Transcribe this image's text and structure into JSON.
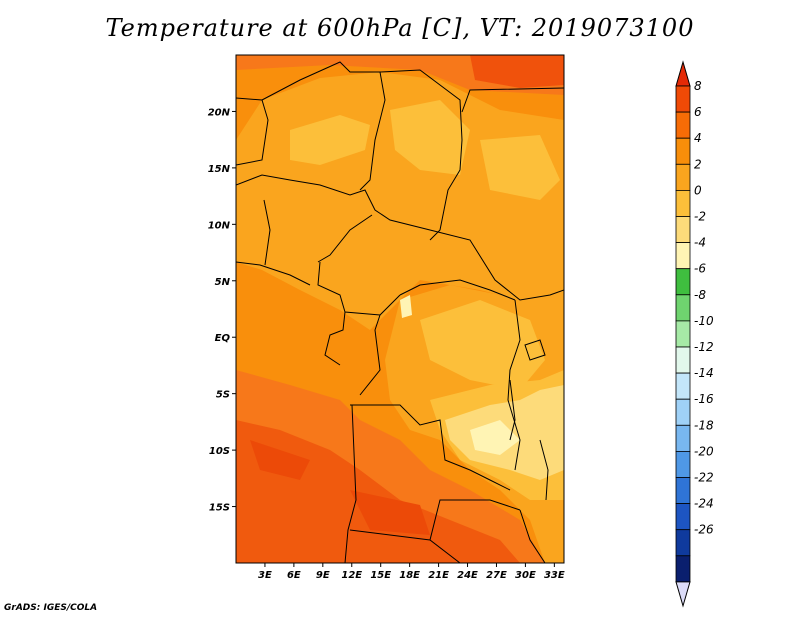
{
  "title": "Temperature at 600hPa [C], VT: 2019073100",
  "credit": "GrADS: IGES/COLA",
  "map": {
    "lon_range": [
      0,
      34
    ],
    "lat_range": [
      -20,
      25
    ],
    "lat_ticks": [
      {
        "value": 20,
        "label": "20N"
      },
      {
        "value": 15,
        "label": "15N"
      },
      {
        "value": 10,
        "label": "10N"
      },
      {
        "value": 5,
        "label": "5N"
      },
      {
        "value": 0,
        "label": "EQ"
      },
      {
        "value": -5,
        "label": "5S"
      },
      {
        "value": -10,
        "label": "10S"
      },
      {
        "value": -15,
        "label": "15S"
      }
    ],
    "lon_ticks": [
      {
        "value": 3,
        "label": "3E"
      },
      {
        "value": 6,
        "label": "6E"
      },
      {
        "value": 9,
        "label": "9E"
      },
      {
        "value": 12,
        "label": "12E"
      },
      {
        "value": 15,
        "label": "15E"
      },
      {
        "value": 18,
        "label": "18E"
      },
      {
        "value": 21,
        "label": "21E"
      },
      {
        "value": 24,
        "label": "24E"
      },
      {
        "value": 27,
        "label": "27E"
      },
      {
        "value": 30,
        "label": "30E"
      },
      {
        "value": 33,
        "label": "33E"
      }
    ]
  },
  "colorbar": {
    "labels": [
      "8",
      "6",
      "4",
      "2",
      "0",
      "-2",
      "-4",
      "-6",
      "-8",
      "-10",
      "-12",
      "-14",
      "-16",
      "-18",
      "-20",
      "-22",
      "-24",
      "-26"
    ],
    "colors_top_to_bottom": [
      "#e42a06",
      "#f04a06",
      "#f76c06",
      "#f88e0a",
      "#faa51e",
      "#fcbf3a",
      "#fddb7a",
      "#fff4b4",
      "#3fbe3f",
      "#6fd46f",
      "#a6eaa6",
      "#e2f8ec",
      "#c3e6fa",
      "#9fd1f7",
      "#78b7f0",
      "#4f98e6",
      "#2f74d6",
      "#1d55c2",
      "#0f3a9d",
      "#0a1f6e",
      "#dcdcf8"
    ]
  }
}
